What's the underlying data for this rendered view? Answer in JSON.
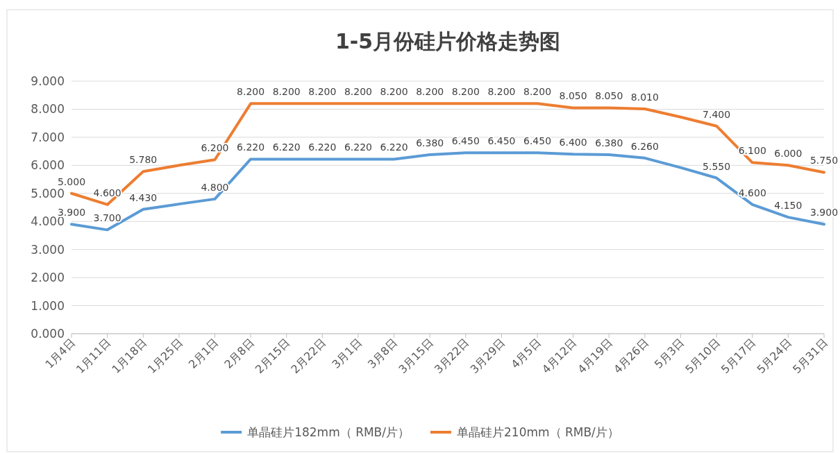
{
  "chart_data": {
    "type": "line",
    "title": "1-5月份硅片价格走势图",
    "categories": [
      "1月4日",
      "1月11日",
      "1月18日",
      "1月25日",
      "2月1日",
      "2月8日",
      "2月15日",
      "2月22日",
      "3月1日",
      "3月8日",
      "3月15日",
      "3月22日",
      "3月29日",
      "4月5日",
      "4月12日",
      "4月19日",
      "4月26日",
      "5月3日",
      "5月10日",
      "5月17日",
      "5月24日",
      "5月31日"
    ],
    "series": [
      {
        "name": "单晶硅片182mm（ RMB/片）",
        "color": "#5b9bd5",
        "values": [
          3.9,
          3.7,
          4.43,
          4.62,
          4.8,
          6.22,
          6.22,
          6.22,
          6.22,
          6.22,
          6.38,
          6.45,
          6.45,
          6.45,
          6.4,
          6.38,
          6.26,
          5.92,
          5.55,
          4.6,
          4.15,
          3.9
        ],
        "value_labels": [
          "3.900",
          "3.700",
          "4.430",
          null,
          "4.800",
          "6.220",
          "6.220",
          "6.220",
          "6.220",
          "6.220",
          "6.380",
          "6.450",
          "6.450",
          "6.450",
          "6.400",
          "6.380",
          "6.260",
          null,
          "5.550",
          "4.600",
          "4.150",
          "3.900"
        ]
      },
      {
        "name": "单晶硅片210mm（ RMB/片）",
        "color": "#ed7d31",
        "values": [
          5.0,
          4.6,
          5.78,
          6.0,
          6.2,
          8.2,
          8.2,
          8.2,
          8.2,
          8.2,
          8.2,
          8.2,
          8.2,
          8.2,
          8.05,
          8.05,
          8.01,
          7.72,
          7.4,
          6.1,
          6.0,
          5.75
        ],
        "value_labels": [
          "5.000",
          "4.600",
          "5.780",
          null,
          "6.200",
          "8.200",
          "8.200",
          "8.200",
          "8.200",
          "8.200",
          "8.200",
          "8.200",
          "8.200",
          "8.200",
          "8.050",
          "8.050",
          "8.010",
          null,
          "7.400",
          "6.100",
          "6.000",
          "5.750"
        ]
      }
    ],
    "ylim": [
      0,
      9
    ],
    "yticks": [
      {
        "value": 0,
        "label": "0.000"
      },
      {
        "value": 1,
        "label": "1.000"
      },
      {
        "value": 2,
        "label": "2.000"
      },
      {
        "value": 3,
        "label": "3.000"
      },
      {
        "value": 4,
        "label": "4.000"
      },
      {
        "value": 5,
        "label": "5.000"
      },
      {
        "value": 6,
        "label": "6.000"
      },
      {
        "value": 7,
        "label": "7.000"
      },
      {
        "value": 8,
        "label": "8.000"
      },
      {
        "value": 9,
        "label": "9.000"
      }
    ],
    "grid": "y",
    "legend": "bottom",
    "marker": "none",
    "line_style": "solid"
  }
}
